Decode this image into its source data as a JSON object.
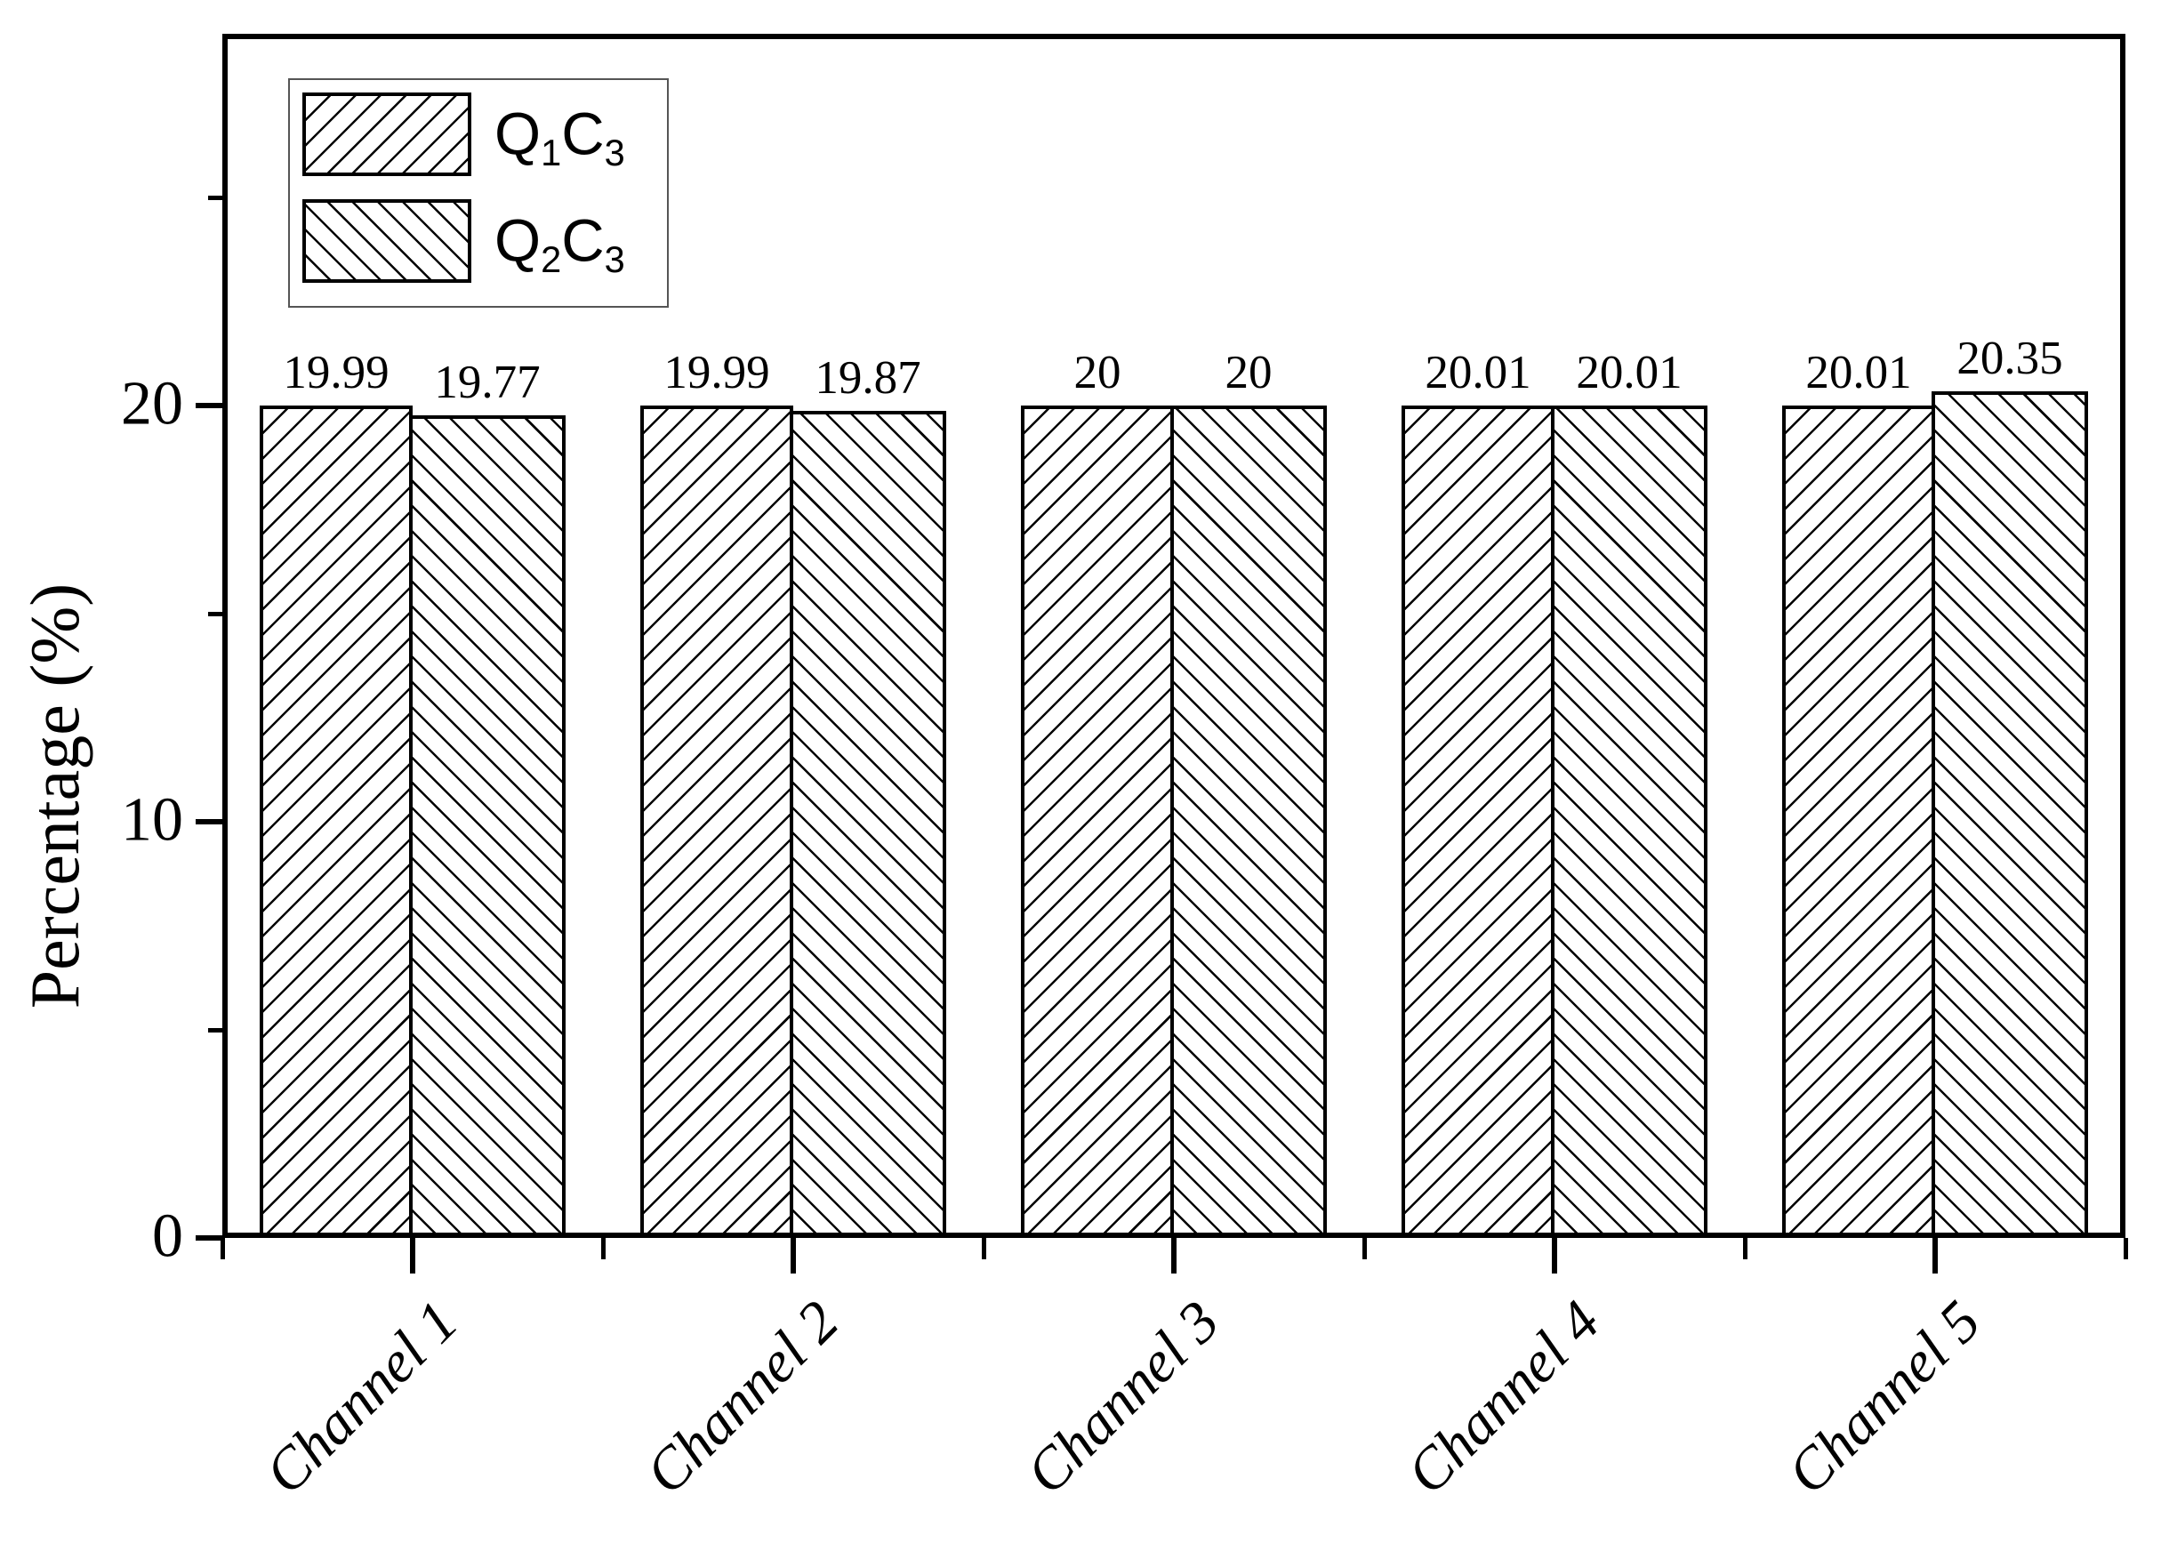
{
  "chart_data": {
    "type": "bar",
    "categories": [
      "Channel 1",
      "Channel 2",
      "Channel 3",
      "Channel 4",
      "Channel 5"
    ],
    "series": [
      {
        "name": "Q1C3",
        "hatch": "/",
        "values": [
          19.99,
          19.99,
          20,
          20.01,
          20.01
        ],
        "value_labels": [
          "19.99",
          "19.99",
          "20",
          "20.01",
          "20.01"
        ]
      },
      {
        "name": "Q2C3",
        "hatch": "\\",
        "values": [
          19.77,
          19.87,
          20,
          20.01,
          20.35
        ],
        "value_labels": [
          "19.77",
          "19.87",
          "20",
          "20.01",
          "20.35"
        ]
      }
    ],
    "title": "",
    "xlabel": "",
    "ylabel": "Percentage (%)",
    "ylim": [
      0,
      28.9
    ],
    "yticks_major": [
      {
        "value": 0,
        "label": "0"
      },
      {
        "value": 10,
        "label": "10"
      },
      {
        "value": 20,
        "label": "20"
      }
    ],
    "yticks_minor": [
      5,
      15,
      25
    ],
    "grid": false,
    "legend_position": "top-left",
    "bar_outline_color": "#000000",
    "background_color": "#ffffff"
  },
  "legend": {
    "items": [
      {
        "series": "Q1C3",
        "hatch": "/",
        "parts": [
          "Q",
          "1",
          "C",
          "3"
        ]
      },
      {
        "series": "Q2C3",
        "hatch": "\\",
        "parts": [
          "Q",
          "2",
          "C",
          "3"
        ]
      }
    ]
  },
  "colors": {
    "foreground": "#000000",
    "background": "#ffffff",
    "legend_border": "#555555"
  }
}
